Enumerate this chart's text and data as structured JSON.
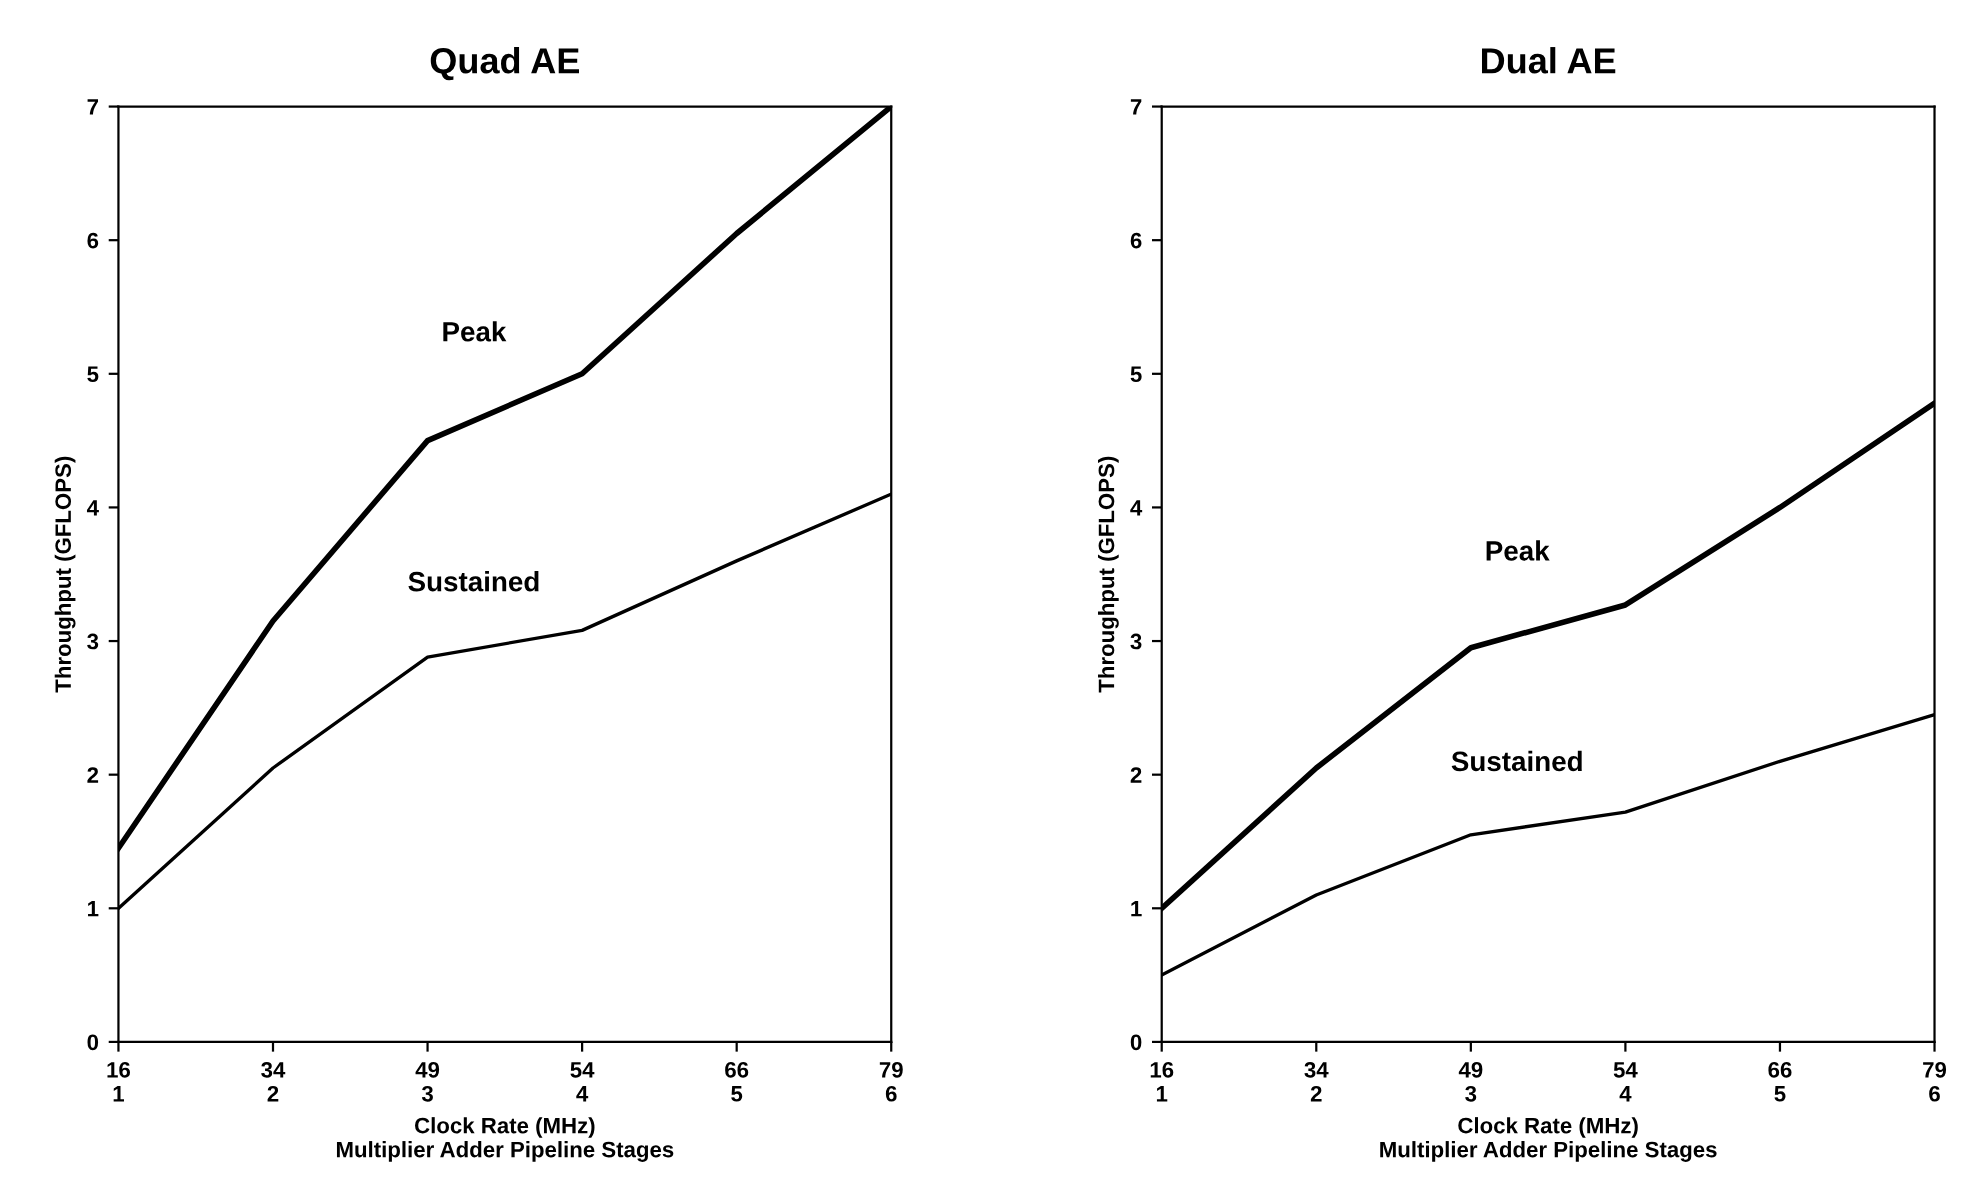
{
  "chart_data": [
    {
      "type": "line",
      "title": "Quad AE",
      "xlabel": "Clock Rate (MHz)\nMultiplier Adder Pipeline Stages",
      "ylabel": "Throughput (GFLOPS)",
      "categories": [
        "16\n1",
        "34\n2",
        "49\n3",
        "54\n4",
        "66\n5",
        "79\n6"
      ],
      "series": [
        {
          "name": "Peak",
          "color": "#000000",
          "values": [
            1.45,
            3.15,
            4.5,
            5.0,
            6.05,
            7.0
          ]
        },
        {
          "name": "Sustained",
          "color": "#000000",
          "values": [
            1.0,
            2.05,
            2.88,
            3.08,
            3.6,
            4.1
          ]
        }
      ],
      "ylim": [
        0,
        7
      ],
      "yticks": [
        0,
        1,
        2,
        3,
        4,
        5,
        6,
        7
      ],
      "grid": false,
      "legend": false,
      "marker": "none",
      "line_style": "solid"
    },
    {
      "type": "line",
      "title": "Dual AE",
      "xlabel": "Clock Rate (MHz)\nMultiplier Adder Pipeline Stages",
      "ylabel": "Throughput (GFLOPS)",
      "categories": [
        "16\n1",
        "34\n2",
        "49\n3",
        "54\n4",
        "66\n5",
        "79\n6"
      ],
      "series": [
        {
          "name": "Peak",
          "color": "#000000",
          "values": [
            1.0,
            2.05,
            2.95,
            3.27,
            4.0,
            4.78
          ]
        },
        {
          "name": "Sustained",
          "color": "#000000",
          "values": [
            0.5,
            1.1,
            1.55,
            1.72,
            2.1,
            2.45
          ]
        }
      ],
      "ylim": [
        0,
        7
      ],
      "yticks": [
        0,
        1,
        2,
        3,
        4,
        5,
        6,
        7
      ],
      "grid": false,
      "legend": false,
      "marker": "none",
      "line_style": "solid"
    }
  ]
}
